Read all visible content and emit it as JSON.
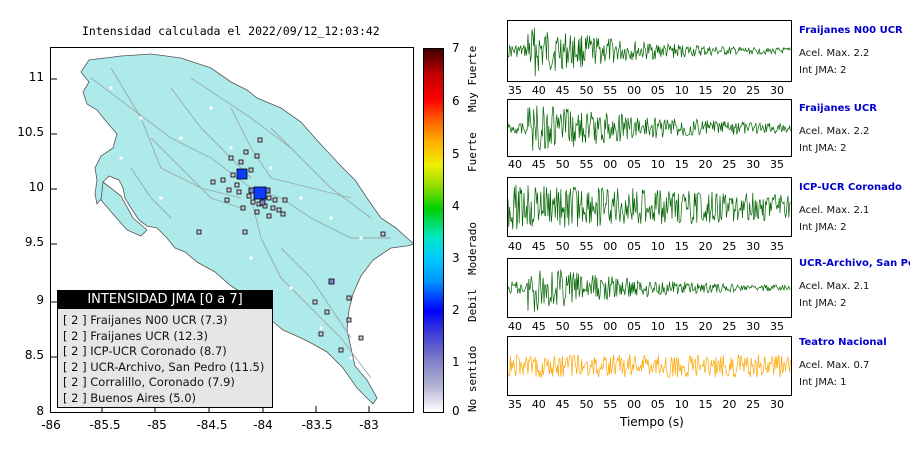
{
  "map": {
    "title": "Intensidad calculada el 2022/09/12_12:03:42",
    "y_labels": [
      "11",
      "10.5",
      "10",
      "9.5",
      "9",
      "8.5",
      "8"
    ],
    "x_labels": [
      "-86",
      "-85.5",
      "-85",
      "-84.5",
      "-84",
      "-83.5",
      "-83"
    ],
    "legend_title": "INTENSIDAD JMA [0 a 7]",
    "legend_rows": [
      "[ 2 ]  Fraijanes N00 UCR (7.3)",
      "[ 2 ]  Fraijanes UCR (12.3)",
      "[ 2 ]  ICP-UCR Coronado (8.7)",
      "[ 2 ]  UCR-Archivo, San Pedro (11.5)",
      "[ 2 ]  Corralillo, Coronado (7.9)",
      "[ 2 ]  Buenos Aires (5.0)"
    ]
  },
  "colorbar": {
    "numbers": [
      "7",
      "6",
      "5",
      "4",
      "3",
      "2",
      "1",
      "0"
    ],
    "words": [
      "Muy Fuerte",
      "Fuerte",
      "Moderado",
      "Debil",
      "No sentido"
    ]
  },
  "traces": {
    "xlabel": "Tiempo (s)",
    "colors": {
      "green": "#006400",
      "orange": "#ffa500"
    },
    "panels": [
      {
        "name": "Fraijanes N00 UCR",
        "acc": "Acel. Max. 2.2",
        "int": "Int JMA: 2",
        "ticks": [
          "35",
          "40",
          "45",
          "50",
          "55",
          "00",
          "05",
          "10",
          "15",
          "20",
          "25",
          "30"
        ]
      },
      {
        "name": "Fraijanes UCR",
        "acc": "Acel. Max. 2.2",
        "int": "Int JMA: 2",
        "ticks": [
          "40",
          "45",
          "50",
          "55",
          "00",
          "05",
          "10",
          "15",
          "20",
          "25",
          "30",
          "35"
        ]
      },
      {
        "name": "ICP-UCR Coronado",
        "acc": "Acel. Max. 2.1",
        "int": "Int JMA: 2",
        "ticks": [
          "40",
          "45",
          "50",
          "55",
          "00",
          "05",
          "10",
          "15",
          "20",
          "25",
          "30",
          "35"
        ]
      },
      {
        "name": "UCR-Archivo, San Pedro",
        "acc": "Acel. Max. 2.1",
        "int": "Int JMA: 2",
        "ticks": [
          "40",
          "45",
          "50",
          "55",
          "00",
          "05",
          "10",
          "15",
          "20",
          "25",
          "30",
          "35"
        ]
      },
      {
        "name": "Teatro Nacional",
        "acc": "Acel. Max. 0.7",
        "int": "Int JMA: 1",
        "ticks": [
          "35",
          "40",
          "45",
          "50",
          "55",
          "00",
          "05",
          "10",
          "15",
          "20",
          "25",
          "30"
        ]
      }
    ]
  }
}
